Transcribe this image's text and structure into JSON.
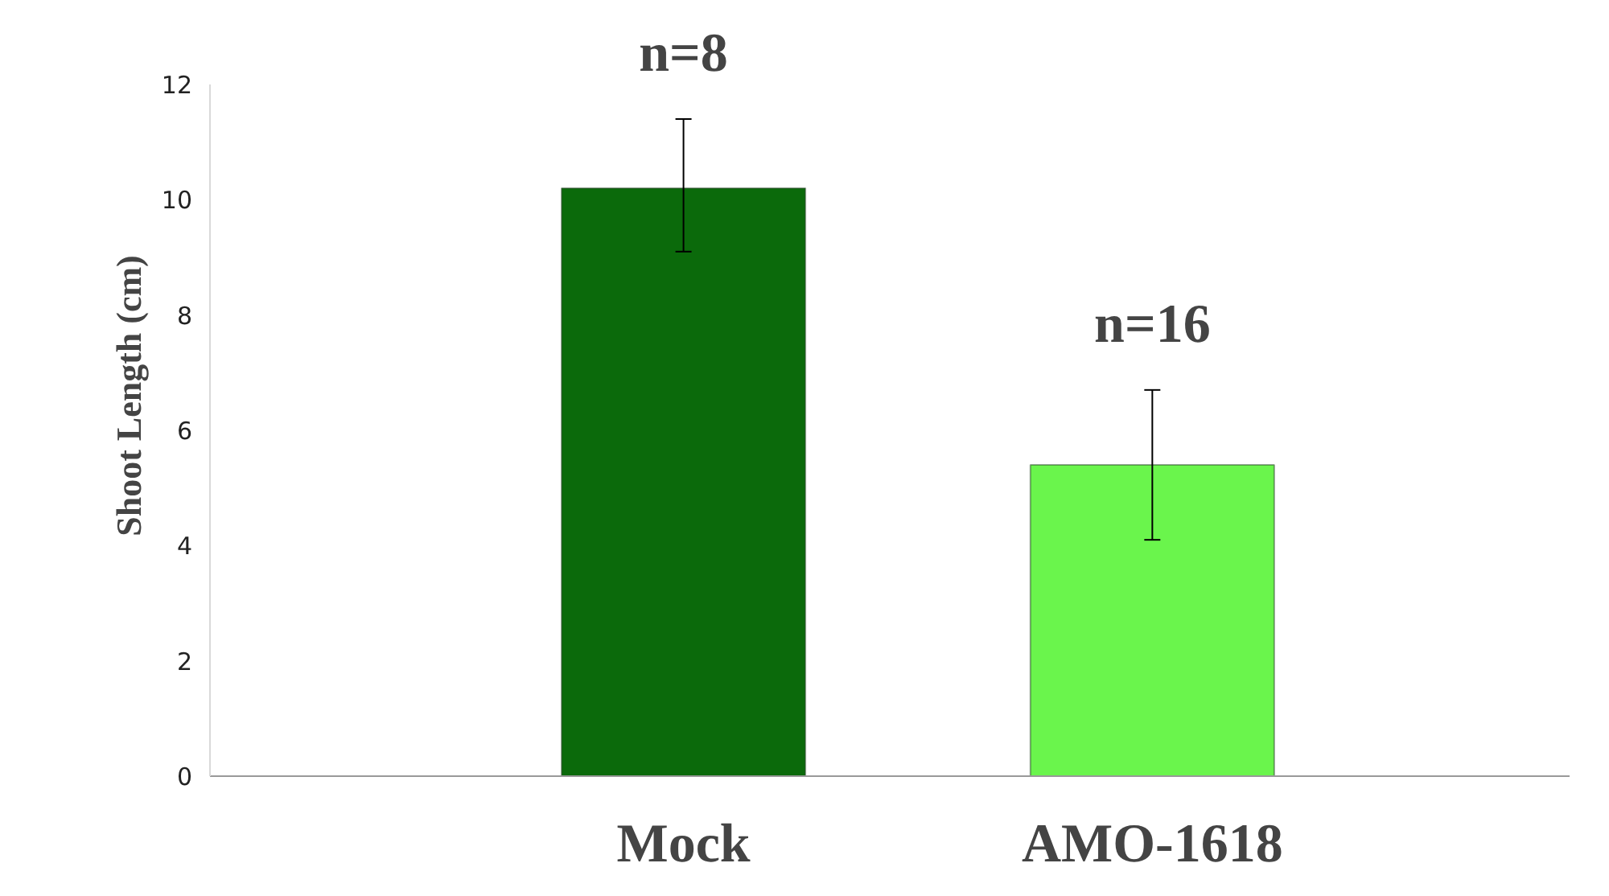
{
  "chart_data": {
    "type": "bar",
    "ylabel": "Shoot Length (cm)",
    "categories": [
      "Mock",
      "AMO-1618"
    ],
    "values": [
      10.2,
      5.4
    ],
    "colors": [
      "#0b6a0b",
      "#6af54c"
    ],
    "errors": [
      [
        9.1,
        11.4
      ],
      [
        4.1,
        6.7
      ]
    ],
    "ylim": [
      0,
      12
    ],
    "yticks": [
      0,
      2,
      4,
      6,
      8,
      10,
      12
    ],
    "grid": false,
    "annotations": [
      {
        "text": "n=8",
        "x": "Mock",
        "y": 11.4
      },
      {
        "text": "n=16",
        "x": "AMO-1618",
        "y": 6.7
      }
    ]
  }
}
